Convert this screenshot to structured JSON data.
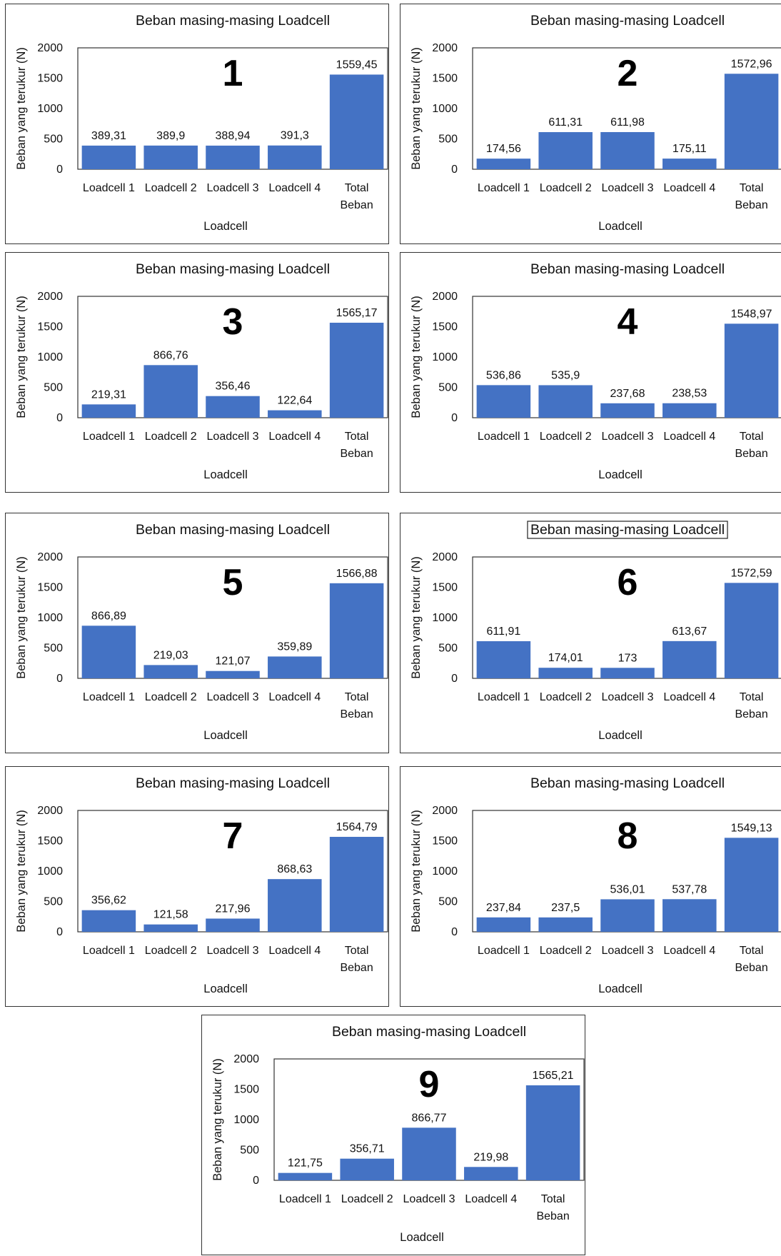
{
  "colors": {
    "bar": "#4472c4"
  },
  "chart_data": [
    {
      "type": "bar",
      "panel_label": "1",
      "title": "Beban masing-masing Loadcell",
      "title_boxed": false,
      "xlabel": "Loadcell",
      "ylabel": "Beban yang terukur (N)",
      "ylim": [
        0,
        2000
      ],
      "yticks": [
        0,
        500,
        1000,
        1500,
        2000
      ],
      "categories": [
        [
          "Loadcell 1"
        ],
        [
          "Loadcell 2"
        ],
        [
          "Loadcell 3"
        ],
        [
          "Loadcell 4"
        ],
        [
          "Total",
          "Beban"
        ]
      ],
      "values": [
        389.31,
        389.9,
        388.94,
        391.3,
        1559.45
      ],
      "labels": [
        "389,31",
        "389,9",
        "388,94",
        "391,3",
        "1559,45"
      ]
    },
    {
      "type": "bar",
      "panel_label": "2",
      "title": "Beban masing-masing Loadcell",
      "title_boxed": false,
      "xlabel": "Loadcell",
      "ylabel": "Beban yang terukur (N)",
      "ylim": [
        0,
        2000
      ],
      "yticks": [
        0,
        500,
        1000,
        1500,
        2000
      ],
      "categories": [
        [
          "Loadcell 1"
        ],
        [
          "Loadcell 2"
        ],
        [
          "Loadcell 3"
        ],
        [
          "Loadcell 4"
        ],
        [
          "Total",
          "Beban"
        ]
      ],
      "values": [
        174.56,
        611.31,
        611.98,
        175.11,
        1572.96
      ],
      "labels": [
        "174,56",
        "611,31",
        "611,98",
        "175,11",
        "1572,96"
      ]
    },
    {
      "type": "bar",
      "panel_label": "3",
      "title": "Beban masing-masing Loadcell",
      "title_boxed": false,
      "xlabel": "Loadcell",
      "ylabel": "Beban yang terukur (N)",
      "ylim": [
        0,
        2000
      ],
      "yticks": [
        0,
        500,
        1000,
        1500,
        2000
      ],
      "categories": [
        [
          "Loadcell 1"
        ],
        [
          "Loadcell 2"
        ],
        [
          "Loadcell 3"
        ],
        [
          "Loadcell 4"
        ],
        [
          "Total",
          "Beban"
        ]
      ],
      "values": [
        219.31,
        866.76,
        356.46,
        122.64,
        1565.17
      ],
      "labels": [
        "219,31",
        "866,76",
        "356,46",
        "122,64",
        "1565,17"
      ]
    },
    {
      "type": "bar",
      "panel_label": "4",
      "title": "Beban masing-masing Loadcell",
      "title_boxed": false,
      "xlabel": "Loadcell",
      "ylabel": "Beban yang terukur (N)",
      "ylim": [
        0,
        2000
      ],
      "yticks": [
        0,
        500,
        1000,
        1500,
        2000
      ],
      "categories": [
        [
          "Loadcell 1"
        ],
        [
          "Loadcell 2"
        ],
        [
          "Loadcell 3"
        ],
        [
          "Loadcell 4"
        ],
        [
          "Total",
          "Beban"
        ]
      ],
      "values": [
        536.86,
        535.9,
        237.68,
        238.53,
        1548.97
      ],
      "labels": [
        "536,86",
        "535,9",
        "237,68",
        "238,53",
        "1548,97"
      ]
    },
    {
      "type": "bar",
      "panel_label": "5",
      "title": "Beban masing-masing Loadcell",
      "title_boxed": false,
      "xlabel": "Loadcell",
      "ylabel": "Beban yang terukur (N)",
      "ylim": [
        0,
        2000
      ],
      "yticks": [
        0,
        500,
        1000,
        1500,
        2000
      ],
      "categories": [
        [
          "Loadcell 1"
        ],
        [
          "Loadcell 2"
        ],
        [
          "Loadcell 3"
        ],
        [
          "Loadcell 4"
        ],
        [
          "Total",
          "Beban"
        ]
      ],
      "values": [
        866.89,
        219.03,
        121.07,
        359.89,
        1566.88
      ],
      "labels": [
        "866,89",
        "219,03",
        "121,07",
        "359,89",
        "1566,88"
      ]
    },
    {
      "type": "bar",
      "panel_label": "6",
      "title": "Beban masing-masing Loadcell",
      "title_boxed": true,
      "xlabel": "Loadcell",
      "ylabel": "Beban yang terukur (N)",
      "ylim": [
        0,
        2000
      ],
      "yticks": [
        0,
        500,
        1000,
        1500,
        2000
      ],
      "categories": [
        [
          "Loadcell 1"
        ],
        [
          "Loadcell 2"
        ],
        [
          "Loadcell 3"
        ],
        [
          "Loadcell 4"
        ],
        [
          "Total",
          "Beban"
        ]
      ],
      "values": [
        611.91,
        174.01,
        173,
        613.67,
        1572.59
      ],
      "labels": [
        "611,91",
        "174,01",
        "173",
        "613,67",
        "1572,59"
      ]
    },
    {
      "type": "bar",
      "panel_label": "7",
      "title": "Beban masing-masing Loadcell",
      "title_boxed": false,
      "xlabel": "Loadcell",
      "ylabel": "Beban yang terukur (N)",
      "ylim": [
        0,
        2000
      ],
      "yticks": [
        0,
        500,
        1000,
        1500,
        2000
      ],
      "categories": [
        [
          "Loadcell 1"
        ],
        [
          "Loadcell 2"
        ],
        [
          "Loadcell 3"
        ],
        [
          "Loadcell 4"
        ],
        [
          "Total",
          "Beban"
        ]
      ],
      "values": [
        356.62,
        121.58,
        217.96,
        868.63,
        1564.79
      ],
      "labels": [
        "356,62",
        "121,58",
        "217,96",
        "868,63",
        "1564,79"
      ]
    },
    {
      "type": "bar",
      "panel_label": "8",
      "title": "Beban masing-masing Loadcell",
      "title_boxed": false,
      "xlabel": "Loadcell",
      "ylabel": "Beban yang terukur (N)",
      "ylim": [
        0,
        2000
      ],
      "yticks": [
        0,
        500,
        1000,
        1500,
        2000
      ],
      "categories": [
        [
          "Loadcell 1"
        ],
        [
          "Loadcell 2"
        ],
        [
          "Loadcell 3"
        ],
        [
          "Loadcell 4"
        ],
        [
          "Total",
          "Beban"
        ]
      ],
      "values": [
        237.84,
        237.5,
        536.01,
        537.78,
        1549.13
      ],
      "labels": [
        "237,84",
        "237,5",
        "536,01",
        "537,78",
        "1549,13"
      ]
    },
    {
      "type": "bar",
      "panel_label": "9",
      "title": "Beban masing-masing Loadcell",
      "title_boxed": false,
      "xlabel": "Loadcell",
      "ylabel": "Beban yang terukur (N)",
      "ylim": [
        0,
        2000
      ],
      "yticks": [
        0,
        500,
        1000,
        1500,
        2000
      ],
      "categories": [
        [
          "Loadcell 1"
        ],
        [
          "Loadcell 2"
        ],
        [
          "Loadcell 3"
        ],
        [
          "Loadcell 4"
        ],
        [
          "Total",
          "Beban"
        ]
      ],
      "values": [
        121.75,
        356.71,
        866.77,
        219.98,
        1565.21
      ],
      "labels": [
        "121,75",
        "356,71",
        "866,77",
        "219,98",
        "1565,21"
      ]
    }
  ]
}
